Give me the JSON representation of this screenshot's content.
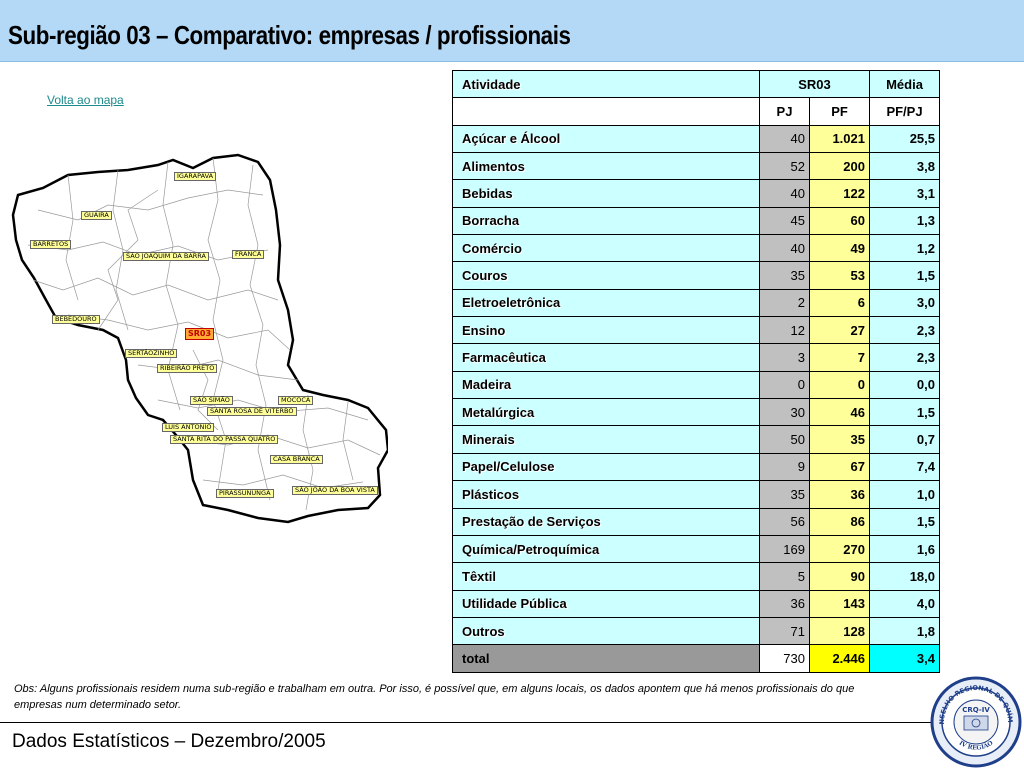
{
  "header": {
    "title": "Sub-região 03 – Comparativo: empresas / profissionais"
  },
  "map": {
    "link": "Volta ao mapa",
    "region_label": "SR03",
    "cities": [
      "IGARAPAVA",
      "GUAIRA",
      "BARRETOS",
      "SÃO JOAQUIM DA BARRA",
      "FRANCA",
      "BEBEDOURO",
      "SERTÃOZINHO",
      "RIBEIRÃO PRETO",
      "SÃO SIMÃO",
      "MOCOCA",
      "SANTA ROSA DE VITERBO",
      "LUIS ANTONIO",
      "SANTA RITA DO PASSA QUATRO",
      "CASA BRANCA",
      "PIRASSUNUNGA",
      "SÃO JOÃO DA BOA VISTA"
    ]
  },
  "table": {
    "headers": {
      "activity": "Atividade",
      "group": "SR03",
      "avg": "Média",
      "pj": "PJ",
      "pf": "PF",
      "ratio": "PF/PJ"
    },
    "rows": [
      {
        "activity": "Açúcar e Álcool",
        "pj": "40",
        "pf": "1.021",
        "ratio": "25,5"
      },
      {
        "activity": "Alimentos",
        "pj": "52",
        "pf": "200",
        "ratio": "3,8"
      },
      {
        "activity": "Bebidas",
        "pj": "40",
        "pf": "122",
        "ratio": "3,1"
      },
      {
        "activity": "Borracha",
        "pj": "45",
        "pf": "60",
        "ratio": "1,3"
      },
      {
        "activity": "Comércio",
        "pj": "40",
        "pf": "49",
        "ratio": "1,2"
      },
      {
        "activity": "Couros",
        "pj": "35",
        "pf": "53",
        "ratio": "1,5"
      },
      {
        "activity": "Eletroeletrônica",
        "pj": "2",
        "pf": "6",
        "ratio": "3,0"
      },
      {
        "activity": "Ensino",
        "pj": "12",
        "pf": "27",
        "ratio": "2,3"
      },
      {
        "activity": "Farmacêutica",
        "pj": "3",
        "pf": "7",
        "ratio": "2,3"
      },
      {
        "activity": "Madeira",
        "pj": "0",
        "pf": "0",
        "ratio": "0,0"
      },
      {
        "activity": "Metalúrgica",
        "pj": "30",
        "pf": "46",
        "ratio": "1,5"
      },
      {
        "activity": "Minerais",
        "pj": "50",
        "pf": "35",
        "ratio": "0,7"
      },
      {
        "activity": "Papel/Celulose",
        "pj": "9",
        "pf": "67",
        "ratio": "7,4"
      },
      {
        "activity": "Plásticos",
        "pj": "35",
        "pf": "36",
        "ratio": "1,0"
      },
      {
        "activity": "Prestação de Serviços",
        "pj": "56",
        "pf": "86",
        "ratio": "1,5"
      },
      {
        "activity": "Química/Petroquímica",
        "pj": "169",
        "pf": "270",
        "ratio": "1,6"
      },
      {
        "activity": "Têxtil",
        "pj": "5",
        "pf": "90",
        "ratio": "18,0"
      },
      {
        "activity": "Utilidade Pública",
        "pj": "36",
        "pf": "143",
        "ratio": "4,0"
      },
      {
        "activity": "Outros",
        "pj": "71",
        "pf": "128",
        "ratio": "1,8"
      }
    ],
    "total": {
      "activity": "total",
      "pj": "730",
      "pf": "2.446",
      "ratio": "3,4"
    }
  },
  "note": "Obs: Alguns profissionais residem numa sub-região e trabalham em outra. Por isso, é possível que, em alguns locais, os dados apontem que há menos profissionais do que empresas num determinado setor.",
  "footer": {
    "text": "Dados Estatísticos – Dezembro/2005"
  },
  "seal": {
    "top_text": "CONSELHO REGIONAL DE QUÍMICA",
    "center_text": "CRQ-IV",
    "bottom_text": "IV REGIÃO"
  },
  "colors": {
    "title_bg": "#b3d9f7",
    "cell_cyan": "#ccffff",
    "cell_gray": "#c0c0c0",
    "cell_yellow": "#ffff99"
  }
}
